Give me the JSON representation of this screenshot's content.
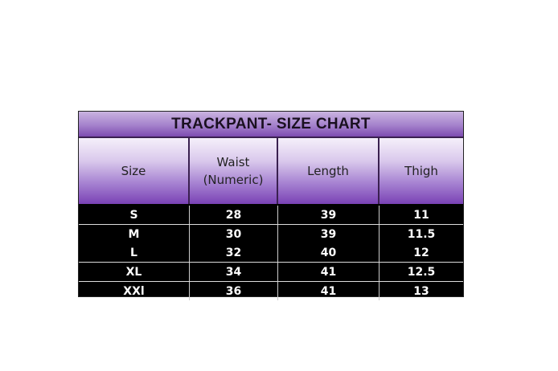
{
  "title": "TRACKPANT- SIZE CHART",
  "headers": [
    "Size",
    "Waist\n(Numeric)",
    "Length",
    "Thigh"
  ],
  "rows": [
    [
      "S",
      "28",
      "39",
      "11"
    ],
    [
      "M",
      "30",
      "39",
      "11.5"
    ],
    [
      "L",
      "32",
      "40",
      "12"
    ],
    [
      "XL",
      "34",
      "41",
      "12.5"
    ],
    [
      "XXl",
      "36",
      "41",
      "13"
    ]
  ],
  "colors": {
    "header_purple": "#7a42b5",
    "body_bg": "#000000",
    "body_text": "#ffffff"
  }
}
